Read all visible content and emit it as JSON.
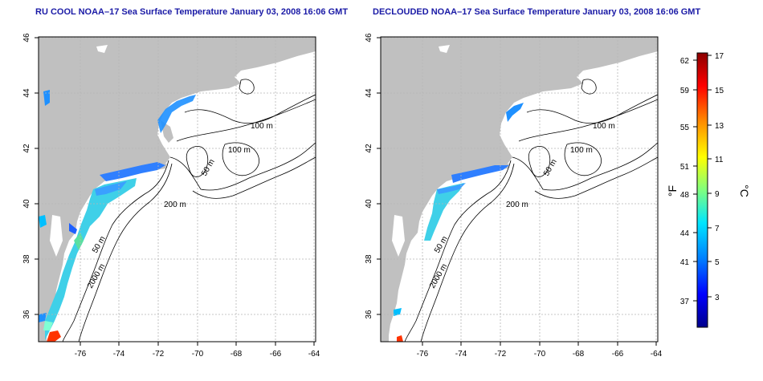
{
  "panels": [
    {
      "title": "RU COOL NOAA–17 Sea Surface Temperature January 03, 2008 16:06 GMT",
      "contour_labels": [
        "100 m",
        "100 m",
        "50 m",
        "200 m",
        "50 m",
        "2000 m"
      ]
    },
    {
      "title": "DECLOUDED NOAA–17 Sea Surface Temperature January 03, 2008 16:06 GMT",
      "contour_labels": [
        "100 m",
        "100 m",
        "50 m",
        "200 m",
        "50 m",
        "2000 m"
      ]
    }
  ],
  "axes": {
    "x_ticks": [
      "-76",
      "-74",
      "-72",
      "-70",
      "-68",
      "-66",
      "-64"
    ],
    "y_ticks": [
      "36",
      "38",
      "40",
      "42",
      "44",
      "46"
    ]
  },
  "colorbar": {
    "fahrenheit_unit": "°F",
    "celsius_unit": "°C",
    "fahrenheit_ticks": [
      "62",
      "59",
      "55",
      "51",
      "48",
      "44",
      "41",
      "37"
    ],
    "celsius_ticks": [
      "17",
      "15",
      "13",
      "11",
      "9",
      "7",
      "5",
      "3"
    ]
  },
  "colors": {
    "land": "#c0c0c0",
    "title": "#1a1aa6",
    "grid": "#b5b5b5",
    "colorbar_stops": [
      "#8b0000",
      "#ff0000",
      "#ff8c00",
      "#ffff00",
      "#7fff7f",
      "#00e5ff",
      "#007fff",
      "#0000ff",
      "#00008b"
    ]
  }
}
